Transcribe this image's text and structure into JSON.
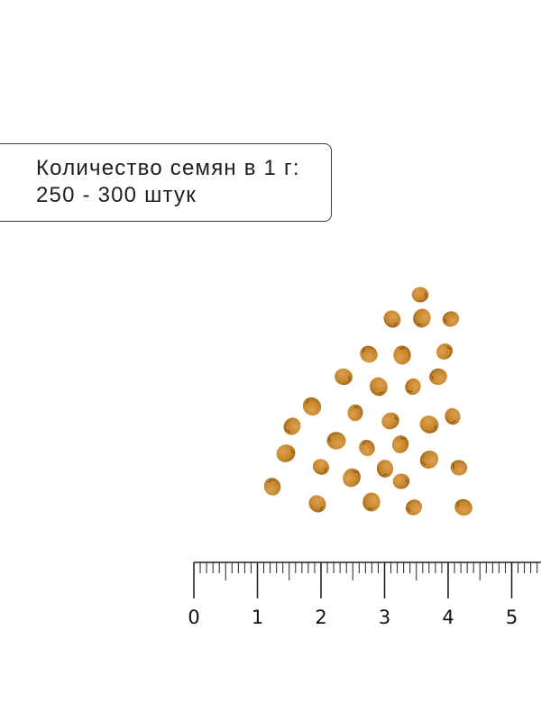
{
  "info": {
    "line1": "Количество семян в 1 г:",
    "line2": "250 - 300 штук"
  },
  "ruler": {
    "labels": [
      "0",
      "1",
      "2",
      "3",
      "4",
      "5"
    ],
    "unit_subdivisions": 10
  },
  "colors": {
    "seed": "#c98a2e",
    "seed_dark": "#a86a1a",
    "ruler": "#222222",
    "border": "#3a3a3a"
  }
}
